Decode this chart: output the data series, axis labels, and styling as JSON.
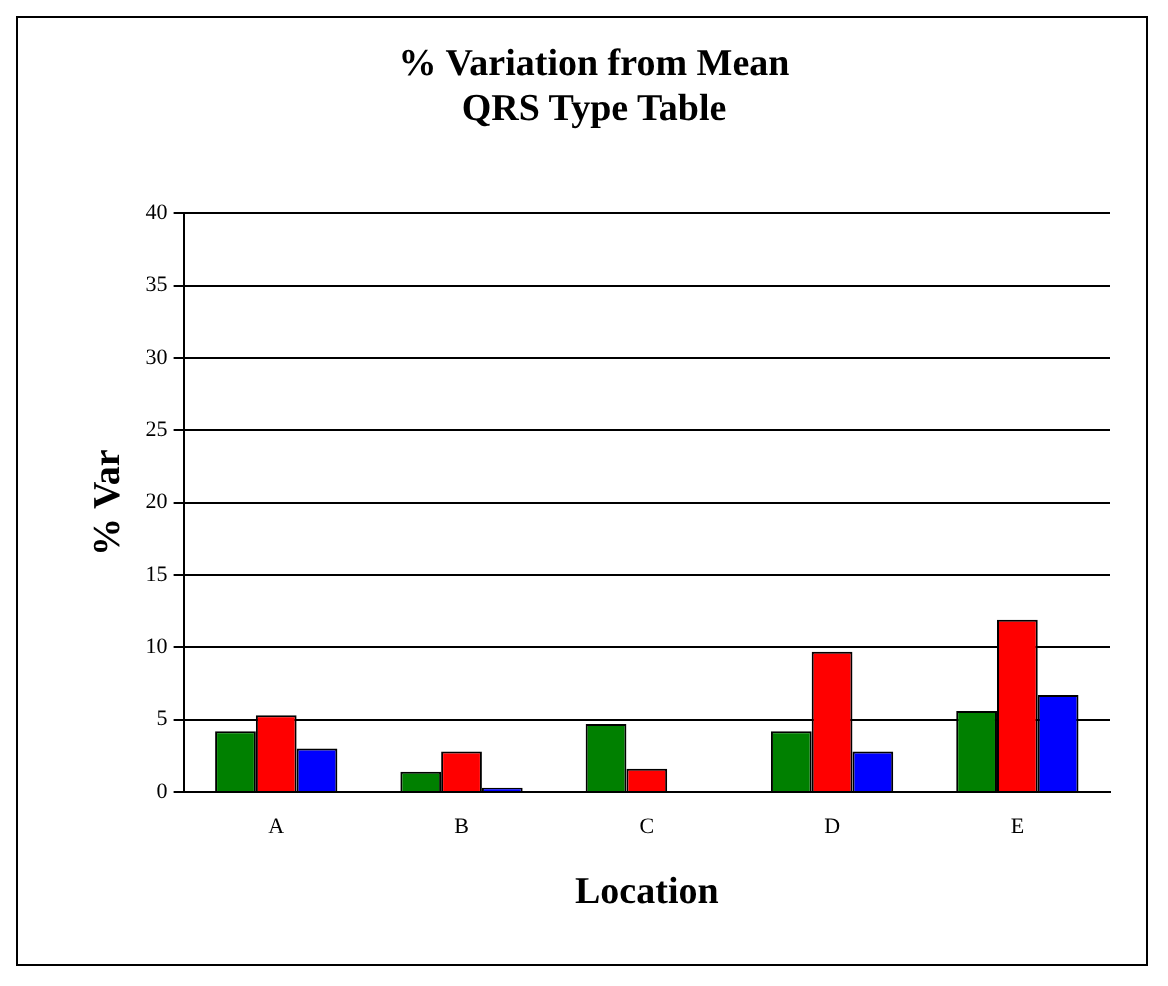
{
  "chart_data": {
    "type": "bar",
    "title": [
      "% Variation from Mean",
      "QRS Type Table"
    ],
    "xlabel": "Location",
    "ylabel": "% Var",
    "categories": [
      "A",
      "B",
      "C",
      "D",
      "E"
    ],
    "series": [
      {
        "color": "#008000",
        "values": [
          4.2,
          1.4,
          4.7,
          4.2,
          5.6
        ]
      },
      {
        "color": "#ff0000",
        "values": [
          5.3,
          2.8,
          1.6,
          9.7,
          11.9
        ]
      },
      {
        "color": "#0000ff",
        "values": [
          3.0,
          0.3,
          null,
          2.8,
          6.7
        ]
      }
    ],
    "ylim": [
      0,
      40
    ],
    "yticks": [
      0,
      5,
      10,
      15,
      20,
      25,
      30,
      35,
      40
    ],
    "grid": "y",
    "legend": false
  }
}
